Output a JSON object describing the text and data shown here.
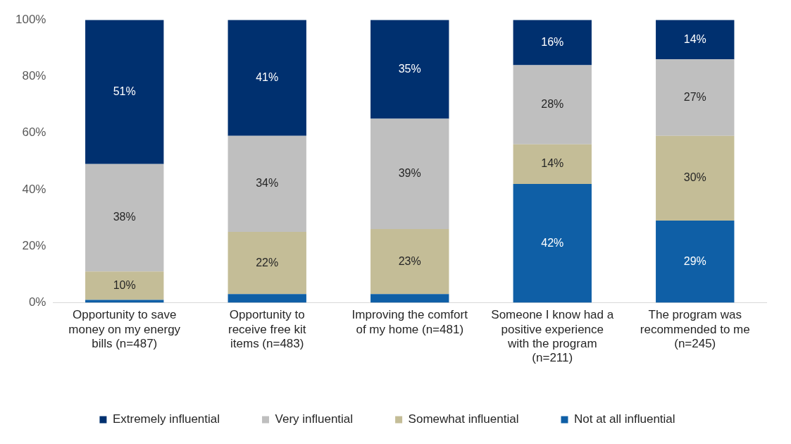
{
  "chart_data": {
    "type": "bar",
    "stacked": true,
    "categories": [
      "Opportunity to save money on my energy bills (n=487)",
      "Opportunity to receive free kit items (n=483)",
      "Improving the comfort of my home (n=481)",
      "Someone I know had a positive experience with the program (n=211)",
      "The program was recommended to me (n=245)"
    ],
    "series": [
      {
        "name": "Not at all influential",
        "color": "#0f5fa6",
        "values": [
          1,
          3,
          3,
          42,
          29
        ],
        "value_labels": [
          null,
          null,
          null,
          "42%",
          "29%"
        ]
      },
      {
        "name": "Somewhat influential",
        "color": "#c4bd97",
        "values": [
          10,
          22,
          23,
          14,
          30
        ],
        "value_labels": [
          "10%",
          "22%",
          "23%",
          "14%",
          "30%"
        ]
      },
      {
        "name": "Very influential",
        "color": "#bfbfbf",
        "values": [
          38,
          34,
          39,
          28,
          27
        ],
        "value_labels": [
          "38%",
          "34%",
          "39%",
          "28%",
          "27%"
        ]
      },
      {
        "name": "Extremely influential",
        "color": "#00306f",
        "values": [
          51,
          41,
          35,
          16,
          14
        ],
        "value_labels": [
          "51%",
          "41%",
          "35%",
          "16%",
          "14%"
        ]
      }
    ],
    "ylim": [
      0,
      100
    ],
    "yticks": [
      {
        "value": 0,
        "label": "0%"
      },
      {
        "value": 20,
        "label": "20%"
      },
      {
        "value": 40,
        "label": "40%"
      },
      {
        "value": 60,
        "label": "60%"
      },
      {
        "value": 80,
        "label": "80%"
      },
      {
        "value": 100,
        "label": "100%"
      }
    ],
    "grid": false,
    "legend": "bottom"
  }
}
